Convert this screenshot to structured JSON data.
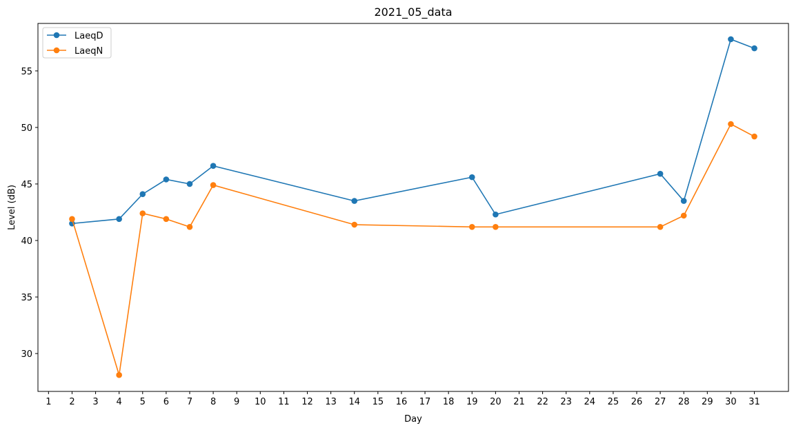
{
  "chart_data": {
    "type": "line",
    "title": "2021_05_data",
    "xlabel": "Day",
    "ylabel": "Level (dB)",
    "xlim": [
      0.55,
      32.45
    ],
    "ylim": [
      26.65,
      59.2
    ],
    "xticks": [
      1,
      2,
      3,
      4,
      5,
      6,
      7,
      8,
      9,
      10,
      11,
      12,
      13,
      14,
      15,
      16,
      17,
      18,
      19,
      20,
      21,
      22,
      23,
      24,
      25,
      26,
      27,
      28,
      29,
      30,
      31
    ],
    "yticks": [
      30,
      35,
      40,
      45,
      50,
      55
    ],
    "grid": false,
    "legend_position": "top-left",
    "series": [
      {
        "name": "LaeqD",
        "color": "#1f77b4",
        "x": [
          2,
          4,
          5,
          6,
          7,
          8,
          14,
          19,
          20,
          27,
          28,
          30,
          31
        ],
        "y": [
          41.5,
          41.9,
          44.1,
          45.4,
          45.0,
          46.6,
          43.5,
          45.6,
          42.3,
          45.9,
          43.5,
          57.8,
          57.0
        ]
      },
      {
        "name": "LaeqN",
        "color": "#ff7f0e",
        "x": [
          2,
          4,
          5,
          6,
          7,
          8,
          14,
          19,
          20,
          27,
          28,
          30,
          31
        ],
        "y": [
          41.9,
          28.1,
          42.4,
          41.9,
          41.2,
          44.9,
          41.4,
          41.2,
          41.2,
          41.2,
          42.2,
          50.3,
          49.2
        ]
      }
    ]
  }
}
